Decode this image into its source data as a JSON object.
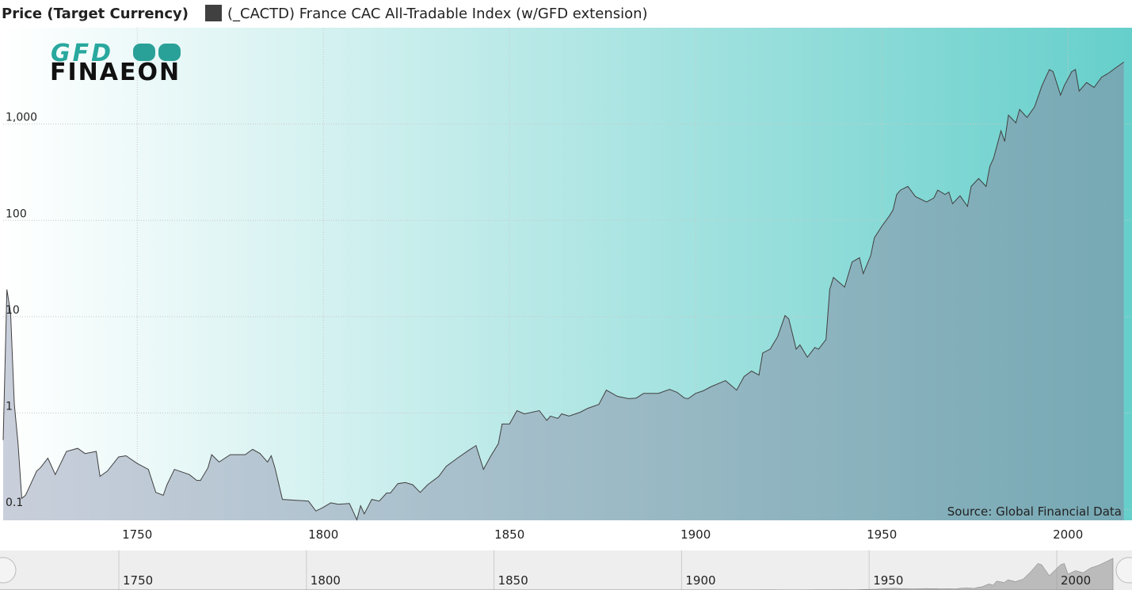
{
  "chart_data": {
    "type": "area",
    "title": "Price (Target Currency)",
    "logo_text": "GFD",
    "logo_subtext": "FINAEON",
    "annotation": "Source: Global Financial Data",
    "log_scale": true,
    "grid": true,
    "xlim": [
      1714,
      2016
    ],
    "xticks": [
      1750,
      1800,
      1850,
      1900,
      1950,
      2000
    ],
    "ylim": [
      0.077,
      10000
    ],
    "yticks": [
      0.1,
      1,
      10,
      100,
      {
        "value": 1000,
        "label": "1,000"
      }
    ],
    "x": [
      1714,
      1715,
      1716,
      1717,
      1718,
      1719,
      1720,
      1723,
      1724,
      1726,
      1728,
      1731,
      1734,
      1736,
      1739,
      1740,
      1742,
      1745,
      1747,
      1750,
      1753,
      1755,
      1757,
      1758,
      1760,
      1764,
      1766,
      1767,
      1769,
      1770,
      1772,
      1775,
      1779,
      1781,
      1783,
      1785,
      1786,
      1787,
      1789,
      1796,
      1798,
      1800,
      1802,
      1804,
      1807,
      1809,
      1810,
      1811,
      1813,
      1815,
      1817,
      1818,
      1820,
      1822,
      1824,
      1826,
      1828,
      1831,
      1833,
      1836,
      1839,
      1841,
      1843,
      1845,
      1847,
      1848,
      1850,
      1852,
      1854,
      1858,
      1860,
      1861,
      1863,
      1864,
      1866,
      1869,
      1871,
      1874,
      1876,
      1879,
      1882,
      1884,
      1886,
      1890,
      1893,
      1895,
      1897,
      1898,
      1900,
      1902,
      1904,
      1907,
      1908,
      1911,
      1913,
      1915,
      1917,
      1918,
      1920,
      1922,
      1924,
      1925,
      1927,
      1928,
      1930,
      1932,
      1933,
      1935,
      1936,
      1937,
      1940,
      1942,
      1944,
      1945,
      1947,
      1948,
      1950,
      1952,
      1953,
      1954,
      1955,
      1957,
      1959,
      1962,
      1964,
      1965,
      1967,
      1968,
      1969,
      1971,
      1973,
      1974,
      1976,
      1978,
      1979,
      1980,
      1982,
      1983,
      1984,
      1986,
      1987,
      1989,
      1991,
      1993,
      1995,
      1996,
      1998,
      1999,
      2001,
      2002,
      2003,
      2005,
      2007,
      2009,
      2011,
      2013,
      2015
    ],
    "series": [
      {
        "name": "(_CACTD) France CAC All-Tradable Index (w/GFD extension)",
        "color": "#404040",
        "values": [
          0.525,
          19.2,
          10.9,
          1.23,
          0.48,
          0.13,
          0.14,
          0.25,
          0.27,
          0.34,
          0.23,
          0.4,
          0.43,
          0.38,
          0.4,
          0.22,
          0.25,
          0.35,
          0.36,
          0.3,
          0.26,
          0.15,
          0.14,
          0.18,
          0.26,
          0.23,
          0.2,
          0.2,
          0.27,
          0.37,
          0.31,
          0.37,
          0.37,
          0.42,
          0.38,
          0.31,
          0.36,
          0.27,
          0.127,
          0.122,
          0.096,
          0.105,
          0.117,
          0.113,
          0.115,
          0.078,
          0.109,
          0.09,
          0.127,
          0.122,
          0.148,
          0.148,
          0.185,
          0.19,
          0.18,
          0.15,
          0.18,
          0.22,
          0.28,
          0.34,
          0.41,
          0.46,
          0.26,
          0.36,
          0.48,
          0.77,
          0.77,
          1.06,
          0.98,
          1.06,
          0.84,
          0.93,
          0.88,
          0.98,
          0.93,
          1.02,
          1.12,
          1.23,
          1.73,
          1.49,
          1.41,
          1.43,
          1.6,
          1.6,
          1.76,
          1.64,
          1.43,
          1.41,
          1.6,
          1.7,
          1.87,
          2.09,
          2.17,
          1.73,
          2.39,
          2.73,
          2.48,
          4.2,
          4.6,
          6.2,
          10.3,
          9.5,
          4.6,
          5.1,
          3.8,
          4.8,
          4.6,
          5.8,
          19.2,
          25.6,
          20.3,
          37,
          41,
          28,
          43,
          66,
          87,
          111,
          128,
          186,
          206,
          225,
          177,
          155,
          171,
          206,
          186,
          197,
          149,
          180,
          140,
          225,
          272,
          225,
          362,
          440,
          850,
          660,
          1240,
          1030,
          1420,
          1170,
          1500,
          2500,
          3680,
          3500,
          2000,
          2500,
          3500,
          3680,
          2200,
          2700,
          2400,
          3060,
          3400,
          3880,
          4400
        ]
      }
    ]
  }
}
